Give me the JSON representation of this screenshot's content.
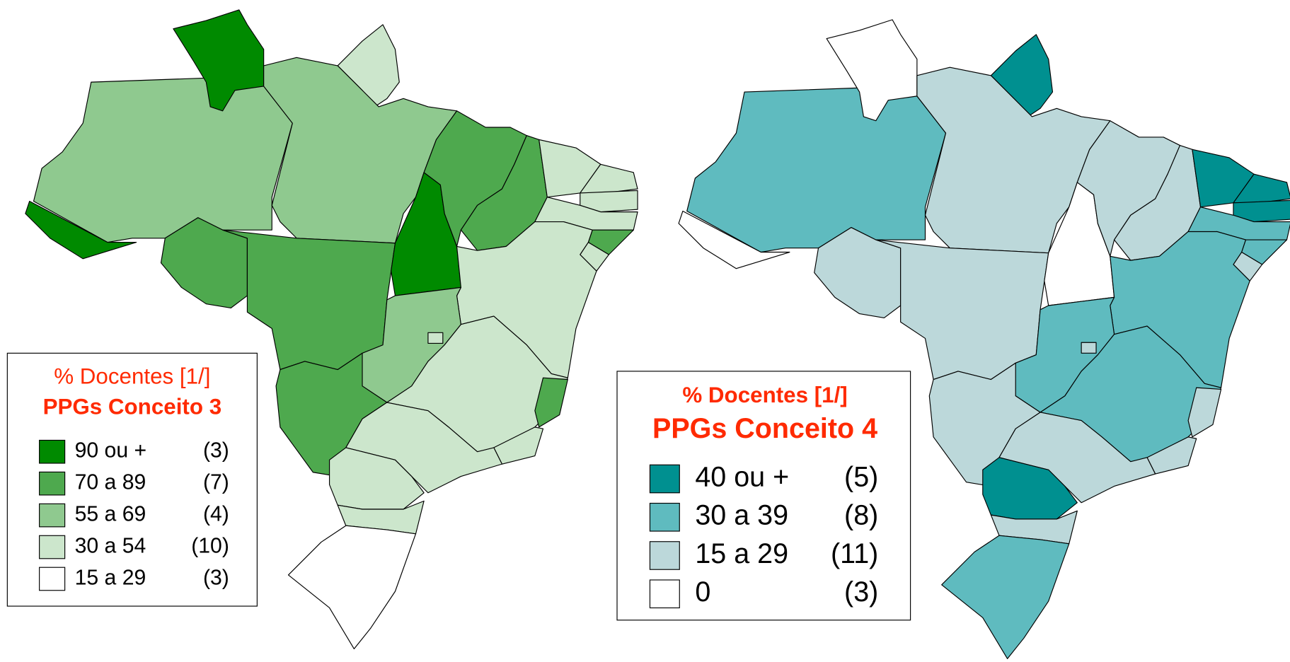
{
  "maps": [
    {
      "legend": {
        "title": "% Docentes [1/]",
        "subtitle": "PPGs Conceito 3",
        "entries": [
          {
            "label": "90 ou +",
            "count": "(3)",
            "color": "#008a00"
          },
          {
            "label": "70 a 89",
            "count": "(7)",
            "color": "#4ea94e"
          },
          {
            "label": "55 a 69",
            "count": "(4)",
            "color": "#8fc98f"
          },
          {
            "label": "30 a 54",
            "count": "(10)",
            "color": "#cce6cc"
          },
          {
            "label": "15 a 29",
            "count": "(3)",
            "color": "#ffffff"
          }
        ]
      }
    },
    {
      "legend": {
        "title": "% Docentes [1/]",
        "subtitle": "PPGs Conceito 4",
        "entries": [
          {
            "label": "40 ou +",
            "count": "(5)",
            "color": "#009090"
          },
          {
            "label": "30 a 39",
            "count": "(8)",
            "color": "#5fbbbf"
          },
          {
            "label": "15 a 29",
            "count": "(11)",
            "color": "#bcd8da"
          },
          {
            "label": "0",
            "count": "(3)",
            "color": "#ffffff"
          }
        ]
      }
    }
  ]
}
